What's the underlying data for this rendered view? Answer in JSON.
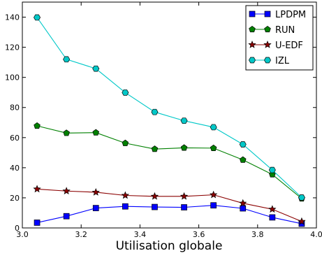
{
  "chart_data": {
    "type": "line",
    "xlabel": "Utilisation globale",
    "ylabel": "",
    "title": "",
    "xlim": [
      3.0,
      4.0
    ],
    "ylim": [
      0,
      150
    ],
    "xticks": [
      3.0,
      3.2,
      3.4,
      3.6,
      3.8,
      4.0
    ],
    "xtick_labels": [
      "3.0",
      "3.2",
      "3.4",
      "3.6",
      "3.8",
      "4.0"
    ],
    "yticks": [
      0,
      20,
      40,
      60,
      80,
      100,
      120,
      140
    ],
    "ytick_labels": [
      "0",
      "20",
      "40",
      "60",
      "80",
      "100",
      "120",
      "140"
    ],
    "grid": false,
    "legend_position": "top-right",
    "x": [
      3.05,
      3.15,
      3.25,
      3.35,
      3.45,
      3.55,
      3.65,
      3.75,
      3.85,
      3.95
    ],
    "series": [
      {
        "name": "LPDPM",
        "color": "#0000ff",
        "marker": "square",
        "values": [
          3.5,
          7.8,
          13.2,
          14.3,
          13.9,
          13.7,
          15.0,
          13.0,
          7.0,
          2.8
        ]
      },
      {
        "name": "RUN",
        "color": "#008000",
        "marker": "pentagon",
        "values": [
          67.8,
          63.0,
          63.3,
          56.3,
          52.4,
          53.2,
          53.0,
          45.2,
          35.5,
          19.5
        ]
      },
      {
        "name": "U-EDF",
        "color": "#8b0000",
        "marker": "star",
        "values": [
          25.8,
          24.5,
          23.7,
          21.6,
          21.0,
          21.0,
          22.0,
          16.4,
          12.4,
          4.3
        ]
      },
      {
        "name": "IZL",
        "color": "#00c8c8",
        "marker": "hexagon",
        "values": [
          139.8,
          112.0,
          105.8,
          89.9,
          77.0,
          71.2,
          66.9,
          55.5,
          38.5,
          20.2
        ]
      }
    ]
  }
}
